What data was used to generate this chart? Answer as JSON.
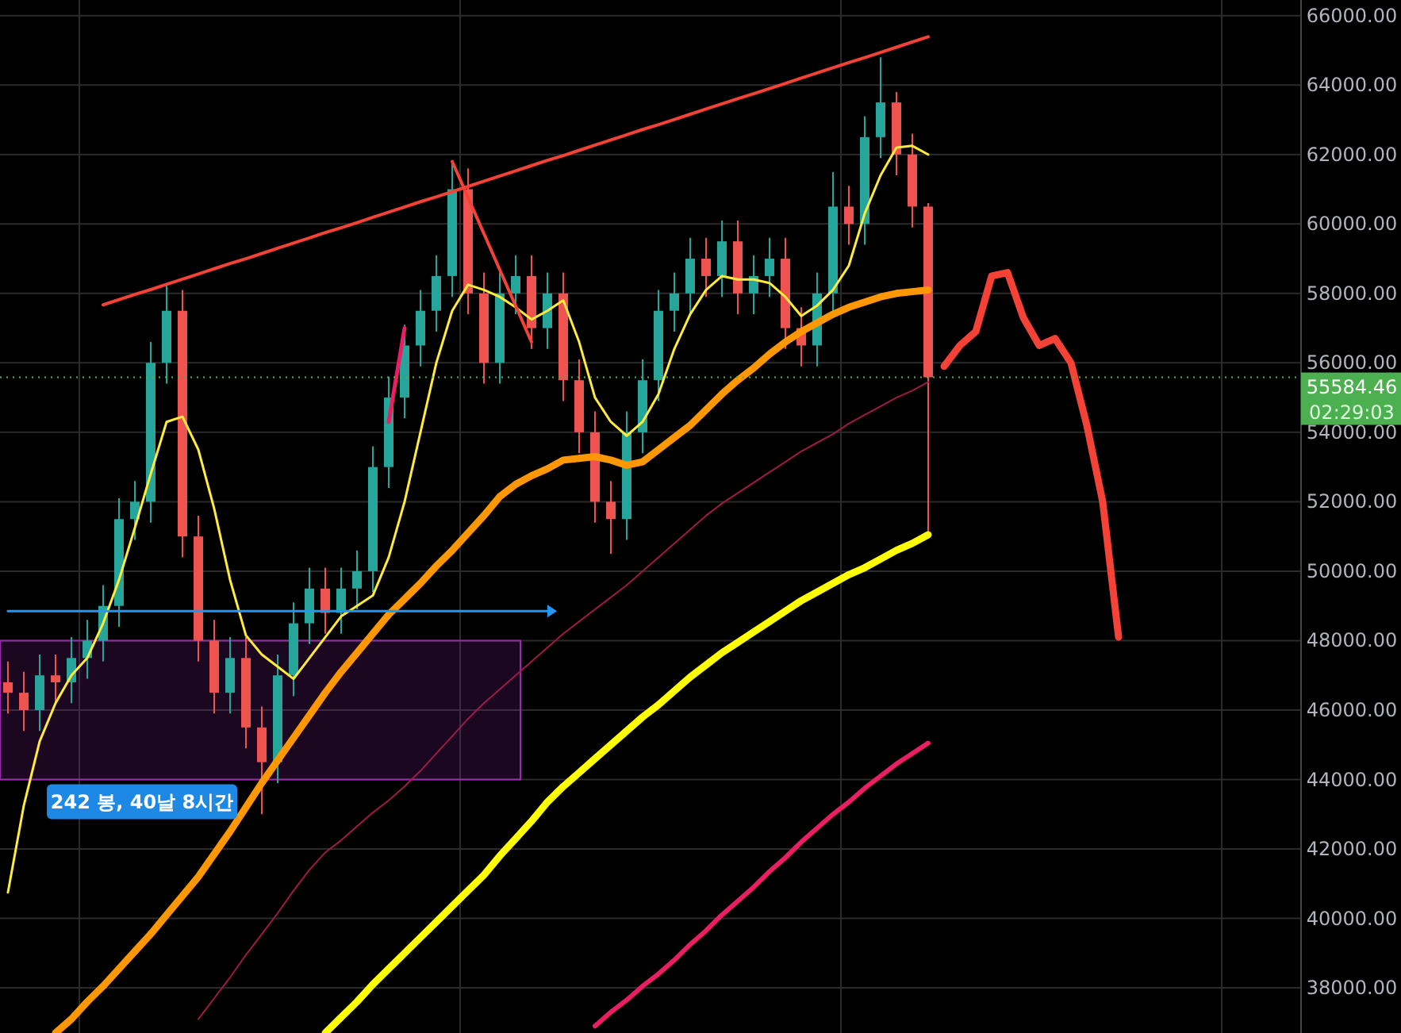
{
  "chart_data": {
    "type": "candlestick",
    "categories": [
      null,
      null,
      null,
      null,
      null,
      null,
      null,
      null,
      null,
      null,
      null,
      null,
      null,
      null,
      null,
      null,
      null,
      null,
      null,
      null,
      null,
      null,
      null,
      null,
      null,
      null,
      null,
      null,
      null,
      null,
      null,
      null,
      null,
      null,
      null,
      null,
      null,
      null,
      null,
      null,
      null,
      null,
      null,
      null,
      null,
      null,
      null,
      null,
      null,
      null,
      null,
      null,
      null,
      null,
      null,
      null,
      null,
      null,
      null,
      null,
      null,
      null,
      null,
      null,
      null,
      null,
      null,
      null,
      null,
      null,
      null
    ],
    "ohlc": [
      [
        46800,
        47400,
        45900,
        46500
      ],
      [
        46500,
        47100,
        45400,
        46000
      ],
      [
        46000,
        47600,
        45400,
        47000
      ],
      [
        47000,
        47600,
        46200,
        46800
      ],
      [
        46800,
        48100,
        46200,
        47500
      ],
      [
        47500,
        48600,
        46900,
        48000
      ],
      [
        48000,
        49600,
        47400,
        49000
      ],
      [
        49000,
        52100,
        48400,
        51500
      ],
      [
        51500,
        52600,
        50900,
        52000
      ],
      [
        52000,
        56600,
        51400,
        56000
      ],
      [
        56000,
        58300,
        55400,
        57500
      ],
      [
        57500,
        58100,
        50400,
        51000
      ],
      [
        51000,
        51600,
        47400,
        48000
      ],
      [
        48000,
        48600,
        45900,
        46500
      ],
      [
        46500,
        48100,
        45900,
        47500
      ],
      [
        47500,
        48100,
        44900,
        45500
      ],
      [
        45500,
        46100,
        43000,
        44500
      ],
      [
        44500,
        47600,
        43900,
        47000
      ],
      [
        47000,
        49100,
        46400,
        48500
      ],
      [
        48500,
        50100,
        47900,
        49500
      ],
      [
        49500,
        50100,
        48200,
        48800
      ],
      [
        48800,
        50100,
        48200,
        49500
      ],
      [
        49500,
        50600,
        48900,
        50000
      ],
      [
        50000,
        53600,
        49400,
        53000
      ],
      [
        53000,
        55600,
        52400,
        55000
      ],
      [
        55000,
        57100,
        54400,
        56500
      ],
      [
        56500,
        58100,
        55900,
        57500
      ],
      [
        57500,
        59100,
        56900,
        58500
      ],
      [
        58500,
        61800,
        57900,
        61000
      ],
      [
        61000,
        61600,
        57400,
        58000
      ],
      [
        58000,
        58600,
        55400,
        56000
      ],
      [
        56000,
        58600,
        55400,
        58000
      ],
      [
        58000,
        59100,
        57400,
        58500
      ],
      [
        58500,
        59100,
        56400,
        57000
      ],
      [
        57000,
        58600,
        56400,
        58000
      ],
      [
        58000,
        58600,
        54900,
        55500
      ],
      [
        55500,
        56100,
        53400,
        54000
      ],
      [
        54000,
        54600,
        51400,
        52000
      ],
      [
        52000,
        52600,
        50500,
        51500
      ],
      [
        51500,
        54600,
        50900,
        54000
      ],
      [
        54000,
        56100,
        53400,
        55500
      ],
      [
        55500,
        58100,
        54900,
        57500
      ],
      [
        57500,
        58600,
        56900,
        58000
      ],
      [
        58000,
        59600,
        57400,
        59000
      ],
      [
        59000,
        59600,
        57900,
        58500
      ],
      [
        58500,
        60100,
        57900,
        59500
      ],
      [
        59500,
        60100,
        57400,
        58000
      ],
      [
        58000,
        59100,
        57400,
        58500
      ],
      [
        58500,
        59600,
        57900,
        59000
      ],
      [
        59000,
        59600,
        56400,
        57000
      ],
      [
        57000,
        57600,
        55900,
        56500
      ],
      [
        56500,
        58600,
        55900,
        58000
      ],
      [
        58000,
        61500,
        57400,
        60500
      ],
      [
        60500,
        61100,
        59400,
        60000
      ],
      [
        60000,
        63100,
        59400,
        62500
      ],
      [
        62500,
        64800,
        61900,
        63500
      ],
      [
        63500,
        63800,
        61400,
        62000
      ],
      [
        62000,
        62600,
        59900,
        60500
      ],
      [
        60500,
        60600,
        51100,
        55584.46
      ],
      null,
      null,
      null,
      null,
      null,
      null,
      null,
      null,
      null,
      null,
      null,
      null
    ],
    "series": [
      {
        "type": "line",
        "color": "#ffeb3b",
        "values": [
          40750,
          43250,
          45100,
          46200,
          47000,
          47500,
          48500,
          49750,
          51250,
          52800,
          54300,
          54450,
          53500,
          51800,
          49750,
          48150,
          47600,
          47250,
          46900,
          47500,
          48100,
          48700,
          49000,
          49300,
          50400,
          52000,
          54000,
          56000,
          57500,
          58250,
          58100,
          57900,
          57600,
          57250,
          57500,
          57800,
          56600,
          55000,
          54300,
          53900,
          54300,
          55100,
          56400,
          57400,
          58100,
          58500,
          58400,
          58400,
          58300,
          57900,
          57350,
          57650,
          58100,
          58800,
          60300,
          61400,
          62200,
          62250,
          62000,
          null,
          null,
          null,
          null,
          null,
          null,
          null,
          null,
          null,
          null,
          null,
          null
        ]
      },
      {
        "type": "line",
        "color": "#ff9800",
        "values": [
          null,
          null,
          null,
          36700,
          37100,
          37600,
          38050,
          38550,
          39050,
          39550,
          40100,
          40650,
          41200,
          41850,
          42500,
          43200,
          43900,
          44550,
          45200,
          45850,
          46500,
          47100,
          47650,
          48200,
          48750,
          49200,
          49650,
          50150,
          50600,
          51100,
          51600,
          52150,
          52500,
          52750,
          52950,
          53200,
          53250,
          53300,
          53200,
          53050,
          53150,
          53500,
          53850,
          54200,
          54650,
          55100,
          55500,
          55850,
          56250,
          56600,
          56900,
          57150,
          57400,
          57600,
          57750,
          57900,
          58000,
          58050,
          58100,
          null,
          null,
          null,
          null,
          null,
          null,
          null,
          null,
          null,
          null,
          null,
          null
        ]
      },
      {
        "type": "line",
        "color": "#a01a48",
        "values": [
          null,
          null,
          null,
          null,
          null,
          null,
          null,
          null,
          null,
          null,
          null,
          null,
          37100,
          37700,
          38300,
          38950,
          39550,
          40150,
          40800,
          41400,
          41900,
          42250,
          42650,
          43050,
          43400,
          43800,
          44250,
          44750,
          45250,
          45750,
          46200,
          46600,
          47000,
          47400,
          47800,
          48200,
          48550,
          48900,
          49250,
          49600,
          50000,
          50400,
          50800,
          51200,
          51600,
          51950,
          52250,
          52550,
          52850,
          53150,
          53450,
          53700,
          53950,
          54250,
          54500,
          54750,
          55000,
          55200,
          55450,
          null,
          null,
          null,
          null,
          null,
          null,
          null,
          null,
          null,
          null,
          null,
          null
        ]
      },
      {
        "type": "line",
        "color": "#ffff00",
        "values": [
          null,
          null,
          null,
          null,
          null,
          null,
          null,
          null,
          null,
          null,
          null,
          null,
          null,
          null,
          null,
          null,
          null,
          null,
          null,
          null,
          36700,
          37150,
          37600,
          38100,
          38550,
          39000,
          39450,
          39900,
          40350,
          40800,
          41250,
          41800,
          42300,
          42800,
          43350,
          43800,
          44200,
          44600,
          45000,
          45400,
          45800,
          46150,
          46550,
          46950,
          47300,
          47650,
          47950,
          48250,
          48550,
          48850,
          49150,
          49400,
          49650,
          49900,
          50100,
          50350,
          50600,
          50800,
          51050,
          null,
          null,
          null,
          null,
          null,
          null,
          null,
          null,
          null,
          null,
          null,
          null
        ]
      },
      {
        "type": "line",
        "color": "#e91e63",
        "values": [
          null,
          null,
          null,
          null,
          null,
          null,
          null,
          null,
          null,
          null,
          null,
          null,
          null,
          null,
          null,
          null,
          null,
          null,
          null,
          null,
          null,
          null,
          null,
          null,
          null,
          null,
          null,
          null,
          null,
          null,
          null,
          null,
          null,
          null,
          null,
          null,
          null,
          36900,
          37300,
          37650,
          38050,
          38400,
          38800,
          39250,
          39650,
          40100,
          40500,
          40900,
          41350,
          41750,
          42200,
          42600,
          43000,
          43350,
          43750,
          44100,
          44450,
          44750,
          45050,
          null,
          null,
          null,
          null,
          null,
          null,
          null,
          null,
          null,
          null,
          null,
          null
        ]
      },
      {
        "type": "line",
        "color": "#f44336",
        "values": [
          null,
          null,
          null,
          null,
          null,
          null,
          57670,
          57820,
          57970,
          58110,
          58260,
          58410,
          58560,
          58710,
          58860,
          59000,
          59150,
          59300,
          59450,
          59600,
          59750,
          59890,
          60040,
          60190,
          60340,
          60490,
          60640,
          60780,
          60930,
          61080,
          61230,
          61380,
          61530,
          61680,
          61830,
          61970,
          62120,
          62270,
          62420,
          62570,
          62720,
          62860,
          63010,
          63160,
          63310,
          63460,
          63610,
          63750,
          63900,
          64050,
          64200,
          64350,
          64500,
          64650,
          64790,
          64940,
          65090,
          65240,
          65390,
          null,
          null,
          null,
          null,
          null,
          null,
          null,
          null,
          null,
          null,
          null,
          null
        ]
      },
      {
        "type": "line",
        "color": "#f44336",
        "values": [
          null,
          null,
          null,
          null,
          null,
          null,
          null,
          null,
          null,
          null,
          null,
          null,
          null,
          null,
          null,
          null,
          null,
          null,
          null,
          null,
          null,
          null,
          null,
          null,
          null,
          null,
          null,
          null,
          61800,
          60760,
          59720,
          58680,
          57640,
          56600,
          null,
          null,
          null,
          null,
          null,
          null,
          null,
          null,
          null,
          null,
          null,
          null,
          null,
          null,
          null,
          null,
          null,
          null,
          null,
          null,
          null,
          null,
          null,
          null,
          null,
          null,
          null,
          null,
          null,
          null,
          null,
          null,
          null,
          null,
          null,
          null,
          null
        ]
      },
      {
        "type": "line",
        "color": "#e91e63",
        "values": [
          null,
          null,
          null,
          null,
          null,
          null,
          null,
          null,
          null,
          null,
          null,
          null,
          null,
          null,
          null,
          null,
          null,
          null,
          null,
          null,
          null,
          null,
          null,
          null,
          54300,
          57000,
          null,
          null,
          null,
          null,
          null,
          null,
          null,
          null,
          null,
          null,
          null,
          null,
          null,
          null,
          null,
          null,
          null,
          null,
          null,
          null,
          null,
          null,
          null,
          null,
          null,
          null,
          null,
          null,
          null,
          null,
          null,
          null,
          null,
          null,
          null,
          null,
          null,
          null,
          null,
          null,
          null,
          null,
          null,
          null,
          null
        ]
      },
      {
        "type": "line",
        "color": "#f44336",
        "values": [
          null,
          null,
          null,
          null,
          null,
          null,
          null,
          null,
          null,
          null,
          null,
          null,
          null,
          null,
          null,
          null,
          null,
          null,
          null,
          null,
          null,
          null,
          null,
          null,
          null,
          null,
          null,
          null,
          null,
          null,
          null,
          null,
          null,
          null,
          null,
          null,
          null,
          null,
          null,
          null,
          null,
          null,
          null,
          null,
          null,
          null,
          null,
          null,
          null,
          null,
          null,
          null,
          null,
          null,
          null,
          null,
          null,
          null,
          null,
          55900,
          56500,
          56900,
          58500,
          58600,
          57300,
          56500,
          56700,
          56000,
          54200,
          52000,
          48100
        ]
      },
      {
        "type": "line",
        "color": "#2196f3",
        "values": [
          48850,
          48850,
          48850,
          48850,
          48850,
          48850,
          48850,
          48850,
          48850,
          48850,
          48850,
          48850,
          48850,
          48850,
          48850,
          48850,
          48850,
          48850,
          48850,
          48850,
          48850,
          48850,
          48850,
          48850,
          48850,
          48850,
          48850,
          48850,
          48850,
          48850,
          48850,
          48850,
          48850,
          48850,
          48850,
          null,
          null,
          null,
          null,
          null,
          null,
          null,
          null,
          null,
          null,
          null,
          null,
          null,
          null,
          null,
          null,
          null,
          null,
          null,
          null,
          null,
          null,
          null,
          null,
          null,
          null,
          null,
          null,
          null,
          null,
          null,
          null,
          null,
          null,
          null,
          null
        ]
      }
    ],
    "ylim": [
      36700,
      66450
    ],
    "yticks": [
      {
        "value": 38000,
        "label": "38000.00"
      },
      {
        "value": 40000,
        "label": "40000.00"
      },
      {
        "value": 42000,
        "label": "42000.00"
      },
      {
        "value": 44000,
        "label": "44000.00"
      },
      {
        "value": 46000,
        "label": "46000.00"
      },
      {
        "value": 48000,
        "label": "48000.00"
      },
      {
        "value": 50000,
        "label": "50000.00"
      },
      {
        "value": 52000,
        "label": "52000.00"
      },
      {
        "value": 54000,
        "label": "54000.00"
      },
      {
        "value": 56000,
        "label": "56000.00"
      },
      {
        "value": 58000,
        "label": "58000.00"
      },
      {
        "value": 60000,
        "label": "60000.00"
      },
      {
        "value": 62000,
        "label": "62000.00"
      },
      {
        "value": 64000,
        "label": "64000.00"
      },
      {
        "value": 66000,
        "label": "66000.00"
      }
    ],
    "grid": true,
    "tick_labels": "y",
    "ref_lines": [
      {
        "axis": "y",
        "value": 55584.46,
        "label": "55584.46",
        "color": "#4caf50",
        "line_style": "dotted"
      }
    ],
    "bands": [
      {
        "axis": "y",
        "from": 44000,
        "to": 48000,
        "label": "242 봉, 40날 8시간",
        "color": "#9c27b0"
      }
    ],
    "annotations": [
      "02:29:03"
    ]
  }
}
